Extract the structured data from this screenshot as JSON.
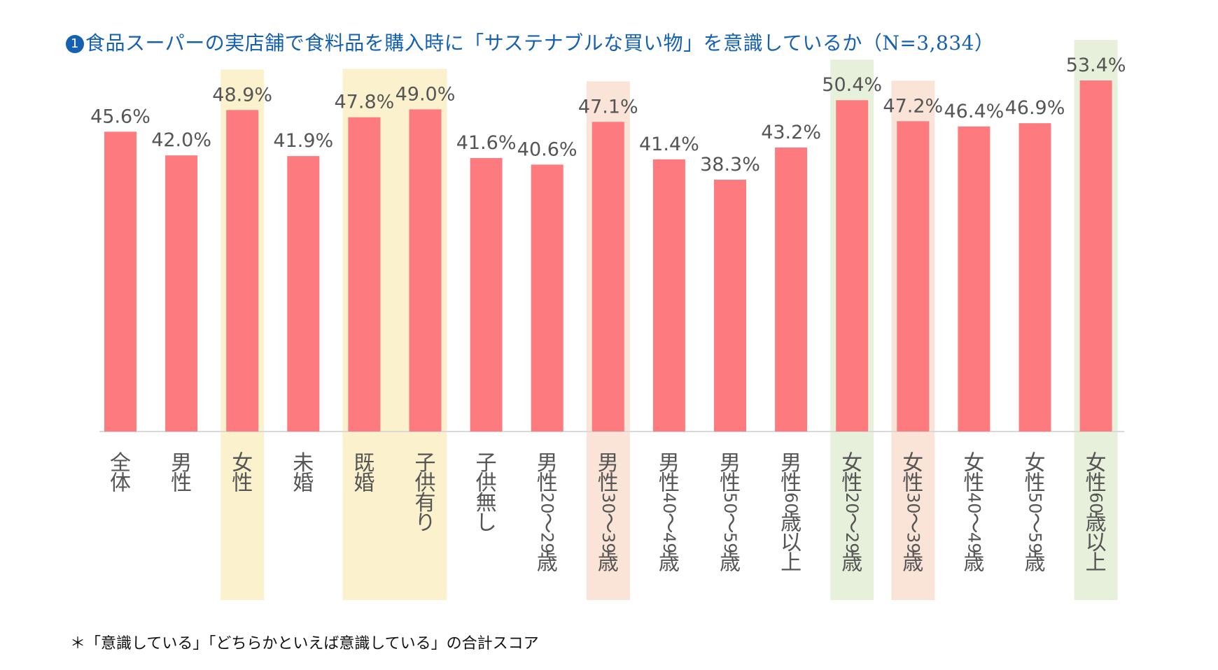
{
  "title_marker": "1",
  "title": "食品スーパーの実店舗で食料品を購入時に「サステナブルな買い物」を意識しているか（N=3,834）",
  "footnote": "＊「意識している」「どちらかといえば意識している」の合計スコア",
  "colors": {
    "title": "#1560b0",
    "bar": "#fd7b7f",
    "label_text": "#555555",
    "highlight_yellow": "#fcf1cd",
    "highlight_peach": "#fae3d7",
    "highlight_green": "#e7f0da",
    "axis": "#d9d9d9"
  },
  "chart_data": {
    "type": "bar",
    "title": "食品スーパーの実店舗で食料品を購入時に「サステナブルな買い物」を意識しているか（N=3,834）",
    "xlabel": "",
    "ylabel": "",
    "ylim": [
      0,
      60
    ],
    "grid": false,
    "legend": "none",
    "categories": [
      "全体",
      "男性",
      "女性",
      "未婚",
      "既婚",
      "子供有り",
      "子供無し",
      "男性20～29歳",
      "男性30～39歳",
      "男性40～49歳",
      "男性50～59歳",
      "男性60歳以上",
      "女性20～29歳",
      "女性30～39歳",
      "女性40～49歳",
      "女性50～59歳",
      "女性60歳以上"
    ],
    "values": [
      45.6,
      42.0,
      48.9,
      41.9,
      47.8,
      49.0,
      41.6,
      40.6,
      47.1,
      41.4,
      38.3,
      43.2,
      50.4,
      47.2,
      46.4,
      46.9,
      53.4
    ],
    "value_labels": [
      "45.6%",
      "42.0%",
      "48.9%",
      "41.9%",
      "47.8%",
      "49.0%",
      "41.6%",
      "40.6%",
      "47.1%",
      "41.4%",
      "38.3%",
      "43.2%",
      "50.4%",
      "47.2%",
      "46.4%",
      "46.9%",
      "53.4%"
    ],
    "highlight_groups": [
      {
        "categories": [
          "女性"
        ],
        "color": "yellow"
      },
      {
        "categories": [
          "既婚",
          "子供有り"
        ],
        "color": "yellow"
      },
      {
        "categories": [
          "男性30～39歳"
        ],
        "color": "peach"
      },
      {
        "categories": [
          "女性20～29歳"
        ],
        "color": "green"
      },
      {
        "categories": [
          "女性30～39歳"
        ],
        "color": "peach"
      },
      {
        "categories": [
          "女性60歳以上"
        ],
        "color": "green"
      }
    ]
  }
}
